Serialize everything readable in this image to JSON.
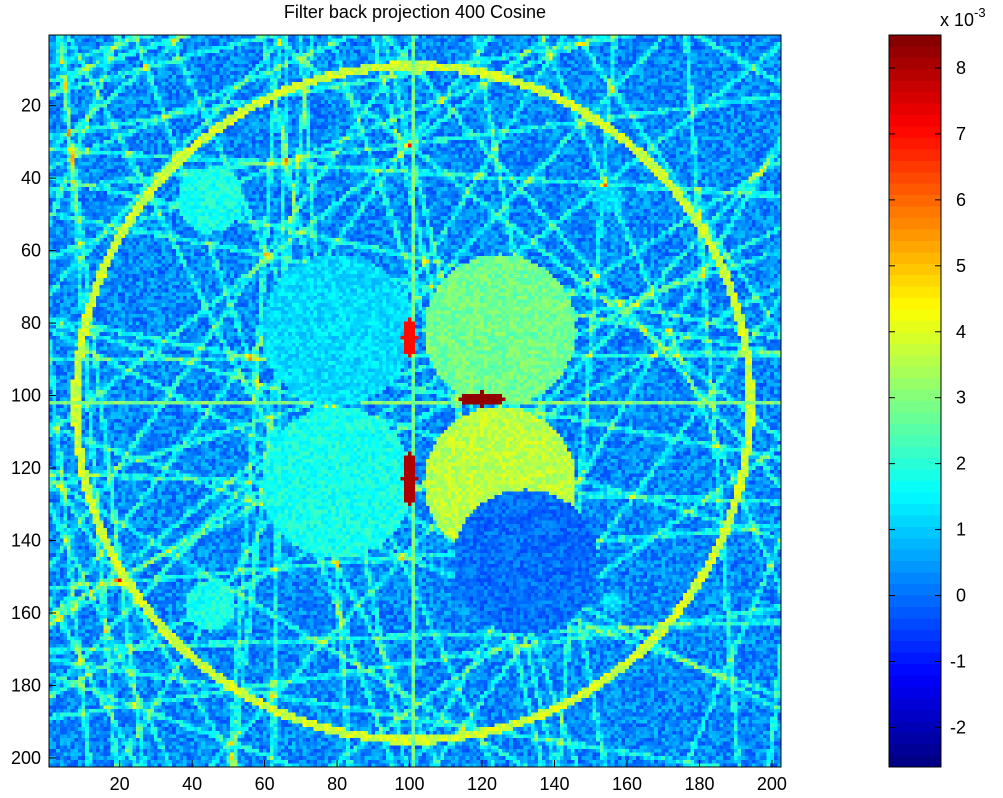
{
  "chart_data": {
    "type": "heatmap",
    "title": "Filter back projection 400 Cosine",
    "xlabel": "",
    "ylabel": "",
    "x_ticks": [
      20,
      40,
      60,
      80,
      100,
      120,
      140,
      160,
      180,
      200
    ],
    "y_ticks": [
      20,
      40,
      60,
      80,
      100,
      120,
      140,
      160,
      180,
      200
    ],
    "xlim": [
      0.5,
      202.5
    ],
    "ylim": [
      0.5,
      202.5
    ],
    "y_reversed": true,
    "grid": false,
    "colormap": "jet",
    "colorbar": {
      "range": [
        -2.6,
        8.5
      ],
      "ticks": [
        -2,
        -1,
        0,
        1,
        2,
        3,
        4,
        5,
        6,
        7,
        8
      ],
      "exponent_label": "x 10",
      "exponent": "-3"
    },
    "background_level": 0.3,
    "features": [
      {
        "shape": "ring",
        "cx": 101,
        "cy": 102,
        "r": 93,
        "level": 3.8
      },
      {
        "shape": "line",
        "orientation": "vertical",
        "at": 101,
        "level": 2.8
      },
      {
        "shape": "line",
        "orientation": "horizontal",
        "at": 102,
        "level": 3.0
      },
      {
        "shape": "disk",
        "cx": 125,
        "cy": 82,
        "r": 21,
        "level": 2.8
      },
      {
        "shape": "disk",
        "cx": 125,
        "cy": 124,
        "r": 21,
        "level": 3.6
      },
      {
        "shape": "disk",
        "cx": 80,
        "cy": 82,
        "r": 21,
        "level": 1.2
      },
      {
        "shape": "disk",
        "cx": 80,
        "cy": 124,
        "r": 21,
        "level": 1.8
      },
      {
        "shape": "disk",
        "cx": 132,
        "cy": 146,
        "r": 20,
        "level": 0.0
      },
      {
        "shape": "disk",
        "cx": 45,
        "cy": 46,
        "r": 9,
        "level": 1.8
      },
      {
        "shape": "disk",
        "cx": 45,
        "cy": 158,
        "r": 7,
        "level": 1.8
      },
      {
        "shape": "disk",
        "cx": 155,
        "cy": 46,
        "r": 4,
        "level": 1.2
      },
      {
        "shape": "disk",
        "cx": 156,
        "cy": 157,
        "r": 3,
        "level": 1.2
      },
      {
        "shape": "spot",
        "cx": 120,
        "cy": 101,
        "rx": 6,
        "ry": 2,
        "level": 8.3
      },
      {
        "shape": "spot",
        "cx": 100,
        "cy": 123,
        "rx": 2,
        "ry": 7,
        "level": 8.0
      },
      {
        "shape": "spot",
        "cx": 100,
        "cy": 84,
        "rx": 2,
        "ry": 5,
        "level": 7.0
      }
    ]
  }
}
